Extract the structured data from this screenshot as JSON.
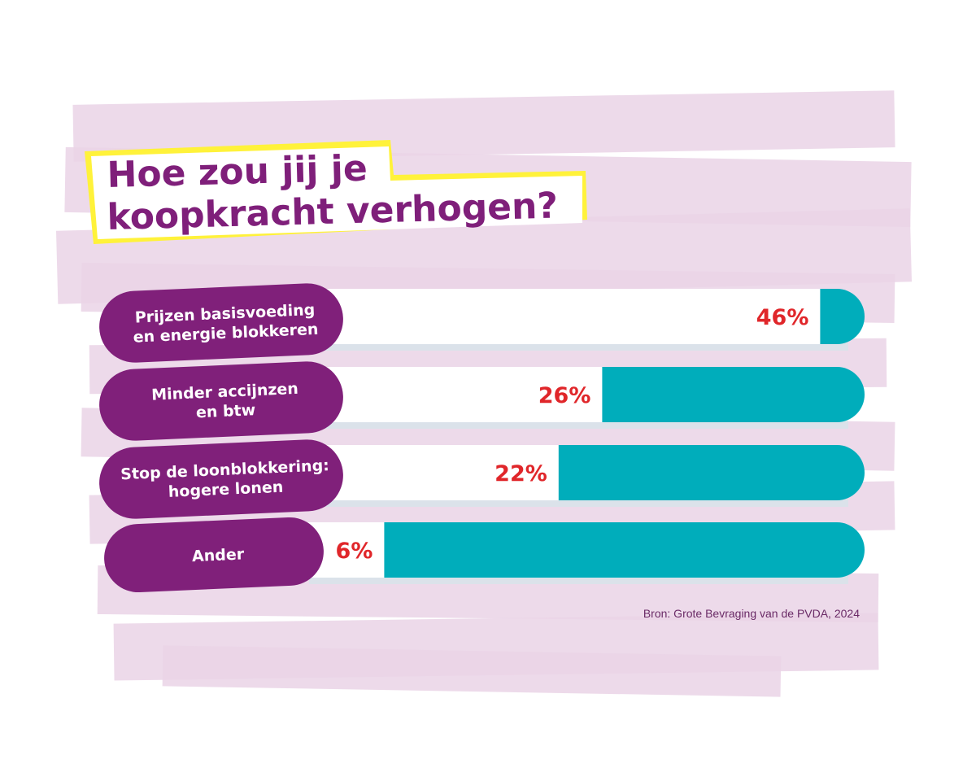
{
  "chart_data": {
    "type": "bar",
    "orientation": "horizontal",
    "title": "Hoe zou jij je koopkracht verhogen?",
    "title_lines": [
      "Hoe zou jij je",
      "koopkracht verhogen?"
    ],
    "categories": [
      [
        "Prijzen basisvoeding",
        "en energie blokkeren"
      ],
      [
        "Minder accijnzen",
        "en btw"
      ],
      [
        "Stop de loonblokkering:",
        "hogere lonen"
      ],
      [
        "Ander"
      ]
    ],
    "values": [
      46,
      26,
      22,
      6
    ],
    "value_labels": [
      "46%",
      "26%",
      "22%",
      "6%"
    ],
    "unit": "%",
    "xlim": [
      0,
      50
    ],
    "grid": false,
    "source": "Bron: Grote Bevraging van de PVDA, 2024",
    "colors": {
      "label_pill": "#80207a",
      "value_fill": "#ffffff",
      "track": "#00adbb",
      "value_text": "#e0262a",
      "background_brush": "#ead3e6",
      "highlight": "#fff23a"
    }
  }
}
